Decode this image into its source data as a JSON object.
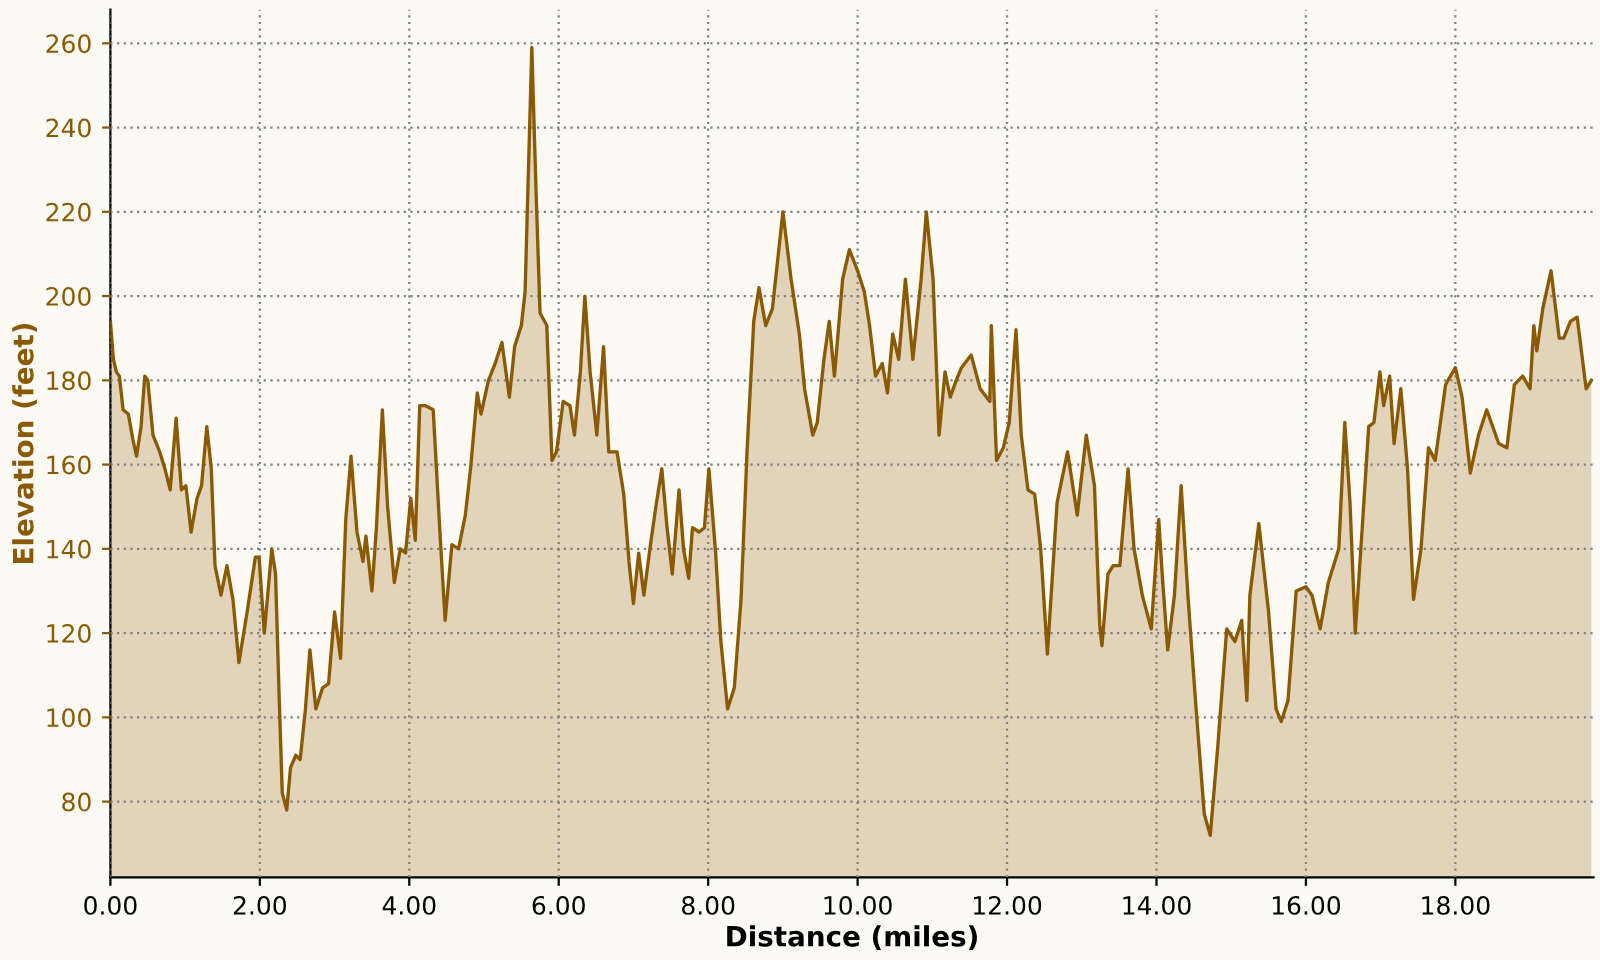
{
  "chart_data": {
    "type": "area",
    "xlabel": "Distance (miles)",
    "ylabel": "Elevation (feet)",
    "xlim": [
      0,
      19.85
    ],
    "ylim": [
      62,
      268
    ],
    "xticks": [
      {
        "value": 0,
        "label": "0.00"
      },
      {
        "value": 2,
        "label": "2.00"
      },
      {
        "value": 4,
        "label": "4.00"
      },
      {
        "value": 6,
        "label": "6.00"
      },
      {
        "value": 8,
        "label": "8.00"
      },
      {
        "value": 10,
        "label": "10.00"
      },
      {
        "value": 12,
        "label": "12.00"
      },
      {
        "value": 14,
        "label": "14.00"
      },
      {
        "value": 16,
        "label": "16.00"
      },
      {
        "value": 18,
        "label": "18.00"
      }
    ],
    "yticks": [
      80,
      100,
      120,
      140,
      160,
      180,
      200,
      220,
      240,
      260
    ],
    "grid": true,
    "legend": false,
    "line_style": "solid",
    "marker": "none",
    "series": [
      {
        "color": "#8b5a00",
        "x": [
          0,
          0.04,
          0.08,
          0.12,
          0.17,
          0.24,
          0.3,
          0.35,
          0.41,
          0.46,
          0.5,
          0.57,
          0.66,
          0.73,
          0.8,
          0.88,
          0.95,
          1.01,
          1.08,
          1.16,
          1.22,
          1.29,
          1.35,
          1.4,
          1.48,
          1.56,
          1.64,
          1.72,
          1.83,
          1.94,
          1.99,
          2.06,
          2.16,
          2.21,
          2.26,
          2.3,
          2.36,
          2.41,
          2.48,
          2.54,
          2.61,
          2.67,
          2.75,
          2.84,
          2.92,
          3.0,
          3.08,
          3.15,
          3.22,
          3.3,
          3.38,
          3.42,
          3.5,
          3.56,
          3.64,
          3.71,
          3.8,
          3.88,
          3.95,
          4.02,
          4.08,
          4.14,
          4.21,
          4.32,
          4.41,
          4.48,
          4.57,
          4.66,
          4.75,
          4.82,
          4.91,
          4.96,
          5.06,
          5.15,
          5.24,
          5.34,
          5.41,
          5.5,
          5.55,
          5.64,
          5.7,
          5.75,
          5.84,
          5.91,
          5.97,
          6.06,
          6.15,
          6.21,
          6.29,
          6.35,
          6.42,
          6.51,
          6.6,
          6.67,
          6.78,
          6.87,
          6.94,
          7.0,
          7.07,
          7.14,
          7.22,
          7.3,
          7.38,
          7.45,
          7.52,
          7.61,
          7.67,
          7.74,
          7.79,
          7.88,
          7.95,
          8.01,
          8.1,
          8.17,
          8.26,
          8.35,
          8.44,
          8.52,
          8.61,
          8.68,
          8.77,
          8.86,
          9.0,
          9.11,
          9.22,
          9.29,
          9.4,
          9.46,
          9.55,
          9.62,
          9.69,
          9.8,
          9.89,
          10.0,
          10.09,
          10.16,
          10.24,
          10.33,
          10.4,
          10.47,
          10.55,
          10.64,
          10.74,
          10.85,
          10.92,
          11.01,
          11.09,
          11.17,
          11.24,
          11.32,
          11.39,
          11.52,
          11.64,
          11.77,
          11.79,
          11.86,
          11.95,
          12.03,
          12.12,
          12.19,
          12.28,
          12.37,
          12.45,
          12.54,
          12.67,
          12.81,
          12.94,
          13.06,
          13.17,
          13.24,
          13.27,
          13.35,
          13.42,
          13.51,
          13.62,
          13.7,
          13.81,
          13.93,
          14.03,
          14.08,
          14.15,
          14.24,
          14.33,
          14.42,
          14.53,
          14.64,
          14.72,
          14.82,
          14.94,
          15.05,
          15.14,
          15.21,
          15.25,
          15.37,
          15.5,
          15.6,
          15.67,
          15.76,
          15.87,
          16.0,
          16.08,
          16.19,
          16.3,
          16.44,
          16.52,
          16.59,
          16.66,
          16.75,
          16.84,
          16.91,
          16.99,
          17.04,
          17.12,
          17.18,
          17.27,
          17.36,
          17.44,
          17.54,
          17.64,
          17.73,
          17.87,
          18.0,
          18.09,
          18.2,
          18.31,
          18.42,
          18.58,
          18.69,
          18.79,
          18.9,
          19.0,
          19.05,
          19.09,
          19.17,
          19.28,
          19.39,
          19.45,
          19.54,
          19.63,
          19.75,
          19.82
        ],
        "values": [
          194,
          185,
          182,
          181,
          173,
          172,
          166,
          162,
          169,
          181,
          180,
          167,
          163,
          159,
          154,
          171,
          154,
          155,
          144,
          152,
          155,
          169,
          159,
          136,
          129,
          136,
          128,
          113,
          125,
          138,
          138,
          120,
          140,
          134,
          104,
          82,
          78,
          88,
          91,
          90,
          102,
          116,
          102,
          107,
          108,
          125,
          114,
          147,
          162,
          144,
          137,
          143,
          130,
          145,
          173,
          150,
          132,
          140,
          139,
          152,
          142,
          174,
          174,
          173,
          144,
          123,
          141,
          140,
          148,
          159,
          177,
          172,
          180,
          184,
          189,
          176,
          188,
          193,
          201,
          259,
          223,
          196,
          193,
          161,
          163,
          175,
          174,
          167,
          182,
          200,
          182,
          167,
          188,
          163,
          163,
          153,
          137,
          127,
          139,
          129,
          140,
          150,
          159,
          145,
          134,
          154,
          140,
          133,
          145,
          144,
          145,
          159,
          139,
          118,
          102,
          107,
          128,
          163,
          194,
          202,
          193,
          197,
          220,
          204,
          191,
          178,
          167,
          170,
          185,
          194,
          181,
          204,
          211,
          206,
          201,
          193,
          181,
          184,
          177,
          191,
          185,
          204,
          185,
          204,
          220,
          204,
          167,
          182,
          176,
          180,
          183,
          186,
          178,
          175,
          193,
          161,
          164,
          170,
          192,
          167,
          154,
          153,
          140,
          115,
          151,
          163,
          148,
          167,
          155,
          122,
          117,
          134,
          136,
          136,
          159,
          140,
          129,
          121,
          147,
          133,
          116,
          129,
          155,
          129,
          102,
          77,
          72,
          93,
          121,
          118,
          123,
          104,
          129,
          146,
          125,
          102,
          99,
          104,
          130,
          131,
          129,
          121,
          132,
          140,
          170,
          151,
          120,
          144,
          169,
          170,
          182,
          174,
          181,
          165,
          178,
          159,
          128,
          140,
          164,
          161,
          179,
          183,
          176,
          158,
          167,
          173,
          165,
          164,
          179,
          181,
          178,
          193,
          187,
          197,
          206,
          190,
          190,
          194,
          195,
          178,
          180
        ]
      }
    ]
  }
}
